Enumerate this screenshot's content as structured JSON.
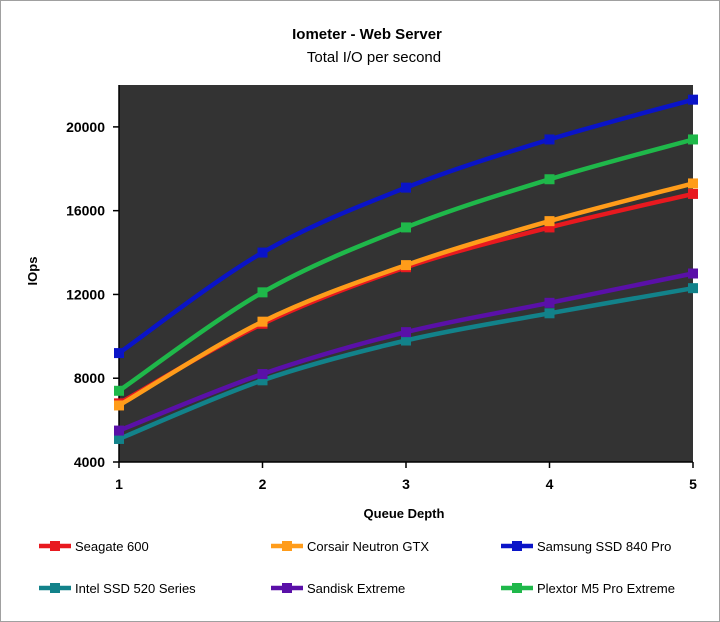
{
  "chart_data": {
    "type": "line",
    "title": "Iometer - Web Server",
    "subtitle": "Total I/O per second",
    "xlabel": "Queue Depth",
    "ylabel": "IOps",
    "x": [
      1,
      2,
      3,
      4,
      5
    ],
    "xlim": [
      1,
      5
    ],
    "ylim": [
      4000,
      22000
    ],
    "yticks": [
      4000,
      8000,
      12000,
      16000,
      20000
    ],
    "xticks": [
      1,
      2,
      3,
      4,
      5
    ],
    "grid": false,
    "plot_background": "#333333",
    "legend_position": "bottom",
    "series": [
      {
        "name": "Seagate 600",
        "color": "#e8191f",
        "values": [
          6800,
          10600,
          13300,
          15200,
          16800
        ]
      },
      {
        "name": "Corsair Neutron GTX",
        "color": "#ff9c1a",
        "values": [
          6700,
          10700,
          13400,
          15500,
          17300
        ]
      },
      {
        "name": "Samsung SSD 840 Pro",
        "color": "#0a14c8",
        "values": [
          9200,
          14000,
          17100,
          19400,
          21300
        ]
      },
      {
        "name": "Intel SSD 520 Series",
        "color": "#12828a",
        "values": [
          5100,
          7900,
          9800,
          11100,
          12300
        ]
      },
      {
        "name": "Sandisk Extreme",
        "color": "#5a10a8",
        "values": [
          5500,
          8200,
          10200,
          11600,
          13000
        ]
      },
      {
        "name": "Plextor M5 Pro Extreme",
        "color": "#1fb84a",
        "values": [
          7400,
          12100,
          15200,
          17500,
          19400
        ]
      }
    ]
  }
}
